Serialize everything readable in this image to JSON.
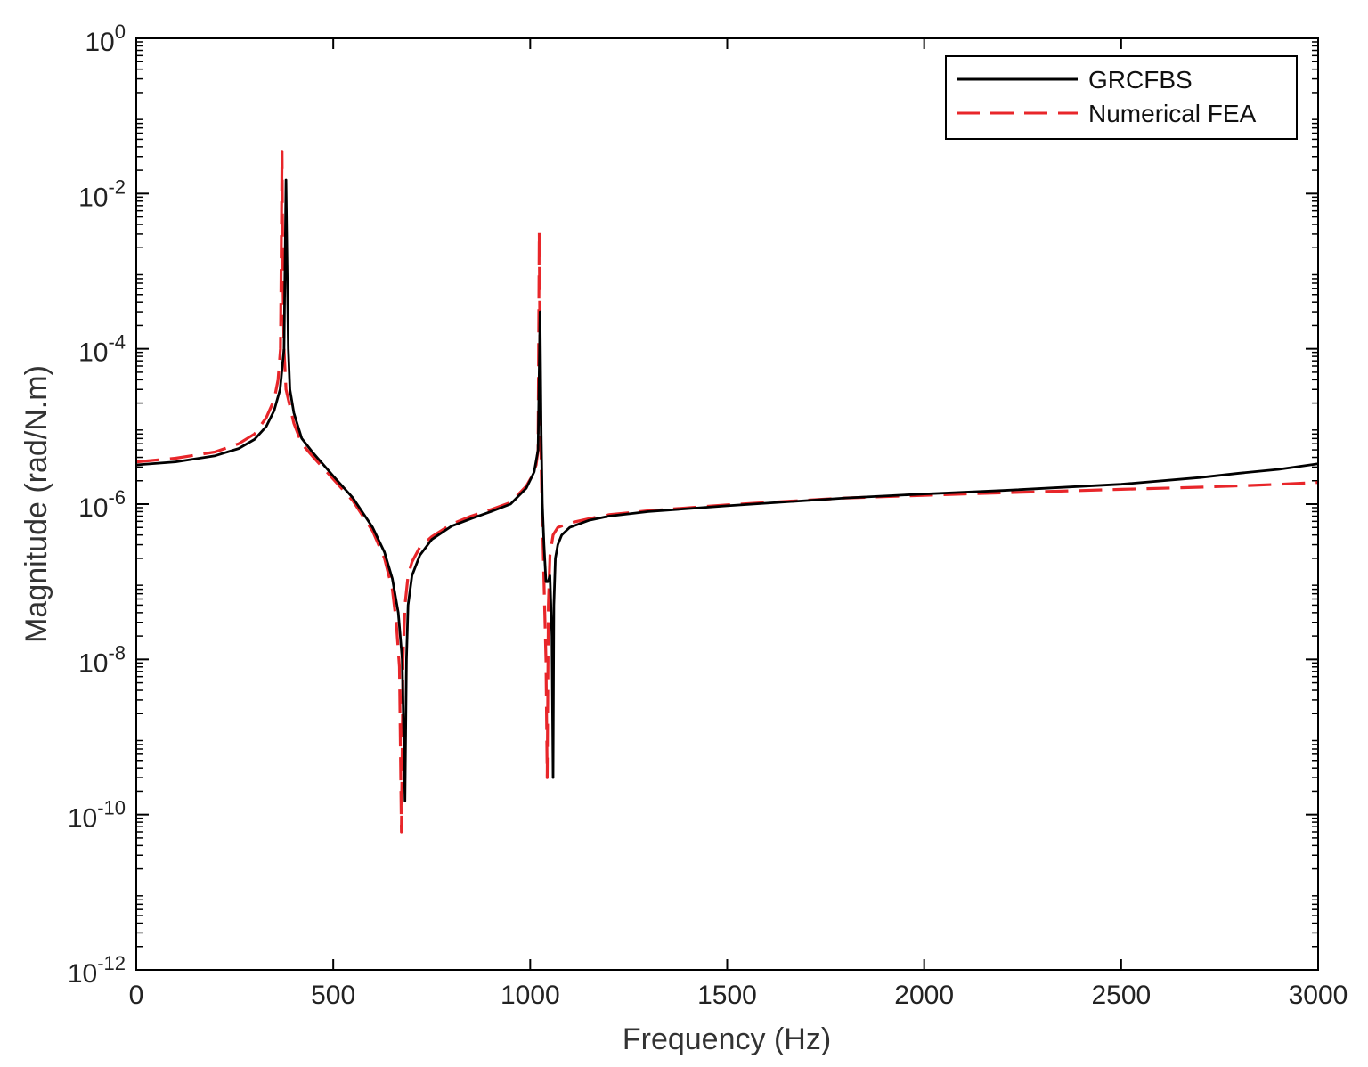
{
  "chart_data": {
    "type": "line",
    "title": "",
    "xlabel": "Frequency (Hz)",
    "ylabel": "Magnitude (rad/N.m)",
    "xlim": [
      0,
      3000
    ],
    "ylim": [
      1e-12,
      1
    ],
    "yscale": "log",
    "grid": false,
    "legend_position": "top-right",
    "x_ticks": [
      "0",
      "500",
      "1000",
      "1500",
      "2000",
      "2500",
      "3000"
    ],
    "x_tick_values": [
      0,
      500,
      1000,
      1500,
      2000,
      2500,
      3000
    ],
    "y_tick_exponents": [
      0,
      -2,
      -4,
      -6,
      -8,
      -10,
      -12
    ],
    "y_tick_base": "10",
    "series": [
      {
        "name": "GRCFBS",
        "color": "#000000",
        "style": "solid",
        "x": [
          0,
          100,
          200,
          260,
          300,
          330,
          350,
          365,
          375,
          380,
          383,
          386,
          390,
          400,
          420,
          450,
          500,
          550,
          600,
          630,
          650,
          665,
          675,
          682,
          686,
          690,
          700,
          720,
          750,
          800,
          850,
          900,
          950,
          990,
          1010,
          1020,
          1025,
          1028,
          1031,
          1035,
          1040,
          1045,
          1050,
          1055,
          1058,
          1060,
          1064,
          1070,
          1080,
          1100,
          1150,
          1200,
          1300,
          1500,
          1800,
          2000,
          2200,
          2500,
          2700,
          2800,
          2900,
          3000
        ],
        "y": [
          3.2e-06,
          3.5e-06,
          4.2e-06,
          5.2e-06,
          6.8e-06,
          1e-05,
          1.6e-05,
          3e-05,
          0.0001,
          0.015,
          0.0012,
          0.0001,
          3e-05,
          1.5e-05,
          7e-06,
          4.5e-06,
          2.3e-06,
          1.2e-06,
          5e-07,
          2.4e-07,
          1.1e-07,
          4e-08,
          1e-08,
          1.5e-10,
          1e-08,
          5e-08,
          1.2e-07,
          2.2e-07,
          3.5e-07,
          5.2e-07,
          6.5e-07,
          8e-07,
          1e-06,
          1.6e-06,
          2.6e-06,
          5e-06,
          0.0003,
          8e-06,
          1e-06,
          3e-07,
          1e-07,
          1e-07,
          1.2e-07,
          2e-08,
          3e-10,
          5e-08,
          2e-07,
          3e-07,
          4e-07,
          5e-07,
          6.2e-07,
          7e-07,
          8e-07,
          9.5e-07,
          1.2e-06,
          1.35e-06,
          1.5e-06,
          1.8e-06,
          2.2e-06,
          2.5e-06,
          2.8e-06,
          3.3e-06
        ]
      },
      {
        "name": "Numerical FEA",
        "color": "#e8262a",
        "style": "dashed",
        "x": [
          0,
          100,
          200,
          260,
          300,
          330,
          350,
          360,
          366,
          370,
          372,
          375,
          380,
          400,
          420,
          450,
          500,
          550,
          600,
          630,
          650,
          660,
          668,
          673,
          677,
          682,
          690,
          700,
          720,
          750,
          800,
          850,
          900,
          950,
          990,
          1005,
          1015,
          1020,
          1023,
          1026,
          1030,
          1035,
          1040,
          1043,
          1046,
          1050,
          1058,
          1070,
          1100,
          1150,
          1200,
          1300,
          1500,
          1800,
          2000,
          2200,
          2500,
          2700,
          2800,
          2900,
          3000
        ],
        "y": [
          3.5e-06,
          3.9e-06,
          4.7e-06,
          6e-06,
          8e-06,
          1.3e-05,
          2.2e-05,
          4e-05,
          0.0001,
          0.035,
          0.001,
          0.0001,
          3e-05,
          1.1e-05,
          6e-06,
          4e-06,
          2.1e-06,
          1.1e-06,
          4.5e-07,
          2e-07,
          8e-08,
          3e-08,
          8e-09,
          6e-11,
          1e-08,
          5e-08,
          1.2e-07,
          1.8e-07,
          2.8e-07,
          3.8e-07,
          5.5e-07,
          7e-07,
          8.5e-07,
          1.05e-06,
          1.7e-06,
          2.3e-06,
          3.2e-06,
          5e-06,
          0.0032,
          1e-05,
          1e-06,
          1e-07,
          1e-08,
          3e-10,
          5e-08,
          2.2e-07,
          4e-07,
          5e-07,
          5.7e-07,
          6.5e-07,
          7.3e-07,
          8.2e-07,
          9.8e-07,
          1.2e-06,
          1.3e-06,
          1.4e-06,
          1.55e-06,
          1.65e-06,
          1.72e-06,
          1.8e-06,
          1.9e-06
        ]
      }
    ]
  }
}
